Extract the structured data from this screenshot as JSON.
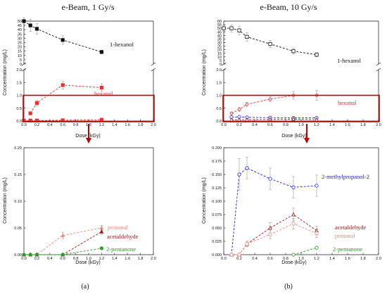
{
  "figure": {
    "panel_a_label": "(a)",
    "panel_b_label": "(b)"
  },
  "colors": {
    "black": "#111111",
    "hexanal": "#e8332f",
    "pentanal": "#f08a80",
    "acetaldehyde": "#a01818",
    "pentanone": "#2a9a2a",
    "methylpropanol": "#2222dd",
    "highlight": "#c00000",
    "errorbar": "#999999"
  },
  "chart_data": [
    {
      "id": "a-top",
      "type": "line",
      "title": "e-Beam, 1 Gy/s",
      "xlabel": "Dose (kGy)",
      "ylabel": "Concentration (mg/L)",
      "xlim": [
        0,
        2.0
      ],
      "x_ticks": [
        "0.0",
        "0.2",
        "0.4",
        "0.6",
        "0.8",
        "1.0",
        "1.2",
        "1.4",
        "1.6",
        "1.8",
        "2.0"
      ],
      "axis_break": true,
      "upper_ylim": [
        0,
        50
      ],
      "upper_ticks": [
        "0",
        "5",
        "10",
        "15",
        "20",
        "25",
        "30",
        "35",
        "40",
        "45",
        "50"
      ],
      "lower_ylim": [
        0,
        2.0
      ],
      "lower_ticks": [
        "0.0",
        "0.5",
        "1.0",
        "1.5",
        "2.0"
      ],
      "highlight_box": [
        0,
        1.0
      ],
      "series": [
        {
          "name": "1-hexanol",
          "color": "#111111",
          "marker": "square-filled",
          "segment": "upper",
          "x": [
            0,
            0.1,
            0.2,
            0.6,
            1.2
          ],
          "y": [
            50,
            45,
            41,
            28,
            14
          ],
          "err": [
            4,
            7,
            6,
            5,
            2
          ]
        },
        {
          "name": "hexanal",
          "color": "#e8332f",
          "marker": "square-filled",
          "segment": "lower",
          "x": [
            0.1,
            0.2,
            0.6,
            1.2
          ],
          "y": [
            0.3,
            0.7,
            1.4,
            1.3
          ],
          "err": [
            0.05,
            0.1,
            0.15,
            0.15
          ]
        },
        {
          "name": "",
          "color": "#e8332f",
          "marker": "square-filled",
          "segment": "lower",
          "x": [
            0,
            0.1,
            0.2,
            0.6,
            1.2
          ],
          "y": [
            0.02,
            0.02,
            0.02,
            0.03,
            0.05
          ],
          "err": [
            0,
            0,
            0,
            0,
            0
          ]
        }
      ]
    },
    {
      "id": "a-bottom",
      "type": "line",
      "xlabel": "Dose (kGy)",
      "ylabel": "Concentration (mg/L)",
      "xlim": [
        0,
        2.0
      ],
      "x_ticks": [
        "0.0",
        "0.2",
        "0.4",
        "0.6",
        "0.8",
        "1.0",
        "1.2",
        "1.4",
        "1.6",
        "1.8",
        "2.0"
      ],
      "ylim": [
        0,
        0.2
      ],
      "y_ticks": [
        "0.00",
        "0.05",
        "0.10",
        "0.15",
        "0.20"
      ],
      "series": [
        {
          "name": "pentanal",
          "color": "#f08a80",
          "marker": "triangle-filled",
          "x": [
            0,
            0.1,
            0.2,
            0.6,
            1.2
          ],
          "y": [
            0,
            0,
            0,
            0.036,
            0.05
          ],
          "err": [
            0,
            0,
            0,
            0.006,
            0.005
          ]
        },
        {
          "name": "acetaldehyde",
          "color": "#a01818",
          "marker": "triangle-filled",
          "x": [
            0,
            0.1,
            0.2,
            0.6,
            1.2
          ],
          "y": [
            0,
            0,
            0,
            0,
            0.043
          ],
          "err": [
            0,
            0,
            0,
            0,
            0.005
          ]
        },
        {
          "name": "2-pentanone",
          "color": "#2a9a2a",
          "marker": "circle-filled",
          "x": [
            0,
            0.1,
            0.2,
            0.6,
            1.2
          ],
          "y": [
            0,
            0,
            0,
            0,
            0.012
          ],
          "err": [
            0,
            0,
            0,
            0,
            0.002
          ]
        }
      ]
    },
    {
      "id": "b-top",
      "type": "line",
      "title": "e-Beam, 10 Gy/s",
      "xlabel": "Dose (kGy)",
      "ylabel": "Concentration (mg/L)",
      "xlim": [
        0,
        2.0
      ],
      "x_ticks": [
        "0.0",
        "0.2",
        "0.4",
        "0.6",
        "0.8",
        "1.0",
        "1.2",
        "1.4",
        "1.6",
        "1.8",
        "2.0"
      ],
      "axis_break": true,
      "upper_ylim": [
        0,
        60
      ],
      "upper_ticks": [
        "0",
        "5",
        "10",
        "15",
        "20",
        "25",
        "30",
        "35",
        "40",
        "45",
        "50",
        "55",
        "60"
      ],
      "lower_ylim": [
        0,
        2.0
      ],
      "lower_ticks": [
        "0.0",
        "0.5",
        "1.0",
        "1.5",
        "2.0"
      ],
      "highlight_box": [
        0,
        1.0
      ],
      "series": [
        {
          "name": "1-hexanol",
          "color": "#111111",
          "marker": "square-open",
          "segment": "upper",
          "x": [
            0,
            0.1,
            0.2,
            0.3,
            0.6,
            0.9,
            1.2
          ],
          "y": [
            50,
            50,
            47,
            38,
            28,
            18,
            13
          ],
          "err": [
            4,
            5,
            6,
            6,
            5,
            4,
            3
          ]
        },
        {
          "name": "hexanal",
          "color": "#e8332f",
          "marker": "diamond-open",
          "segment": "lower",
          "x": [
            0.1,
            0.2,
            0.3,
            0.6,
            0.9,
            1.2
          ],
          "y": [
            0.3,
            0.45,
            0.65,
            0.85,
            1.0,
            1.0
          ],
          "err": [
            0.05,
            0.08,
            0.08,
            0.1,
            0.15,
            0.2
          ]
        },
        {
          "name": "",
          "color": "#2222dd",
          "marker": "circle-open",
          "segment": "lower",
          "x": [
            0.1,
            0.2,
            0.3,
            0.6,
            0.9,
            1.2
          ],
          "y": [
            0.15,
            0.16,
            0.14,
            0.13,
            0.12,
            0.12
          ],
          "err": [
            0.02,
            0.02,
            0.02,
            0.02,
            0.02,
            0.02
          ]
        },
        {
          "name": "",
          "color": "#a01818",
          "marker": "triangle-open",
          "segment": "lower",
          "x": [
            0.1,
            0.2,
            0.3,
            0.6,
            0.9,
            1.2
          ],
          "y": [
            0.05,
            0.05,
            0.05,
            0.06,
            0.07,
            0.05
          ],
          "err": [
            0,
            0,
            0,
            0,
            0,
            0
          ]
        }
      ]
    },
    {
      "id": "b-bottom",
      "type": "line",
      "xlabel": "Dose (kGy)",
      "ylabel": "Concentration (mg/L)",
      "xlim": [
        0,
        2.0
      ],
      "x_ticks": [
        "0.0",
        "0.2",
        "0.4",
        "0.6",
        "0.8",
        "1.0",
        "1.2",
        "1.4",
        "1.6",
        "1.8",
        "2.0"
      ],
      "ylim": [
        0,
        0.2
      ],
      "y_ticks": [
        "0.000",
        "0.025",
        "0.050",
        "0.075",
        "0.100",
        "0.125",
        "0.150",
        "0.175",
        "0.200"
      ],
      "series": [
        {
          "name": "2-methylpropanol-2",
          "color": "#2222dd",
          "marker": "circle-open",
          "x": [
            0.1,
            0.2,
            0.3,
            0.6,
            0.9,
            1.2
          ],
          "y": [
            0,
            0.15,
            0.162,
            0.142,
            0.126,
            0.129
          ],
          "err": [
            0,
            0.03,
            0.02,
            0.02,
            0.02,
            0.02
          ]
        },
        {
          "name": "acetaldehyde",
          "color": "#a01818",
          "marker": "triangle-open",
          "x": [
            0.1,
            0.2,
            0.3,
            0.6,
            0.9,
            1.2
          ],
          "y": [
            0,
            0,
            0.02,
            0.05,
            0.075,
            0.045
          ],
          "err": [
            0,
            0,
            0.005,
            0.01,
            0.012,
            0.008
          ]
        },
        {
          "name": "pentanal",
          "color": "#f08a80",
          "marker": "circle-open",
          "x": [
            0.1,
            0.2,
            0.3,
            0.6,
            0.9,
            1.2
          ],
          "y": [
            0,
            0,
            0.02,
            0.038,
            0.058,
            0.04
          ],
          "err": [
            0,
            0,
            0.005,
            0.008,
            0.01,
            0.008
          ]
        },
        {
          "name": "2-pentanone",
          "color": "#2a9a2a",
          "marker": "circle-open",
          "x": [
            0.9,
            1.2
          ],
          "y": [
            0,
            0.013
          ],
          "err": [
            0,
            0.002
          ]
        }
      ]
    }
  ]
}
